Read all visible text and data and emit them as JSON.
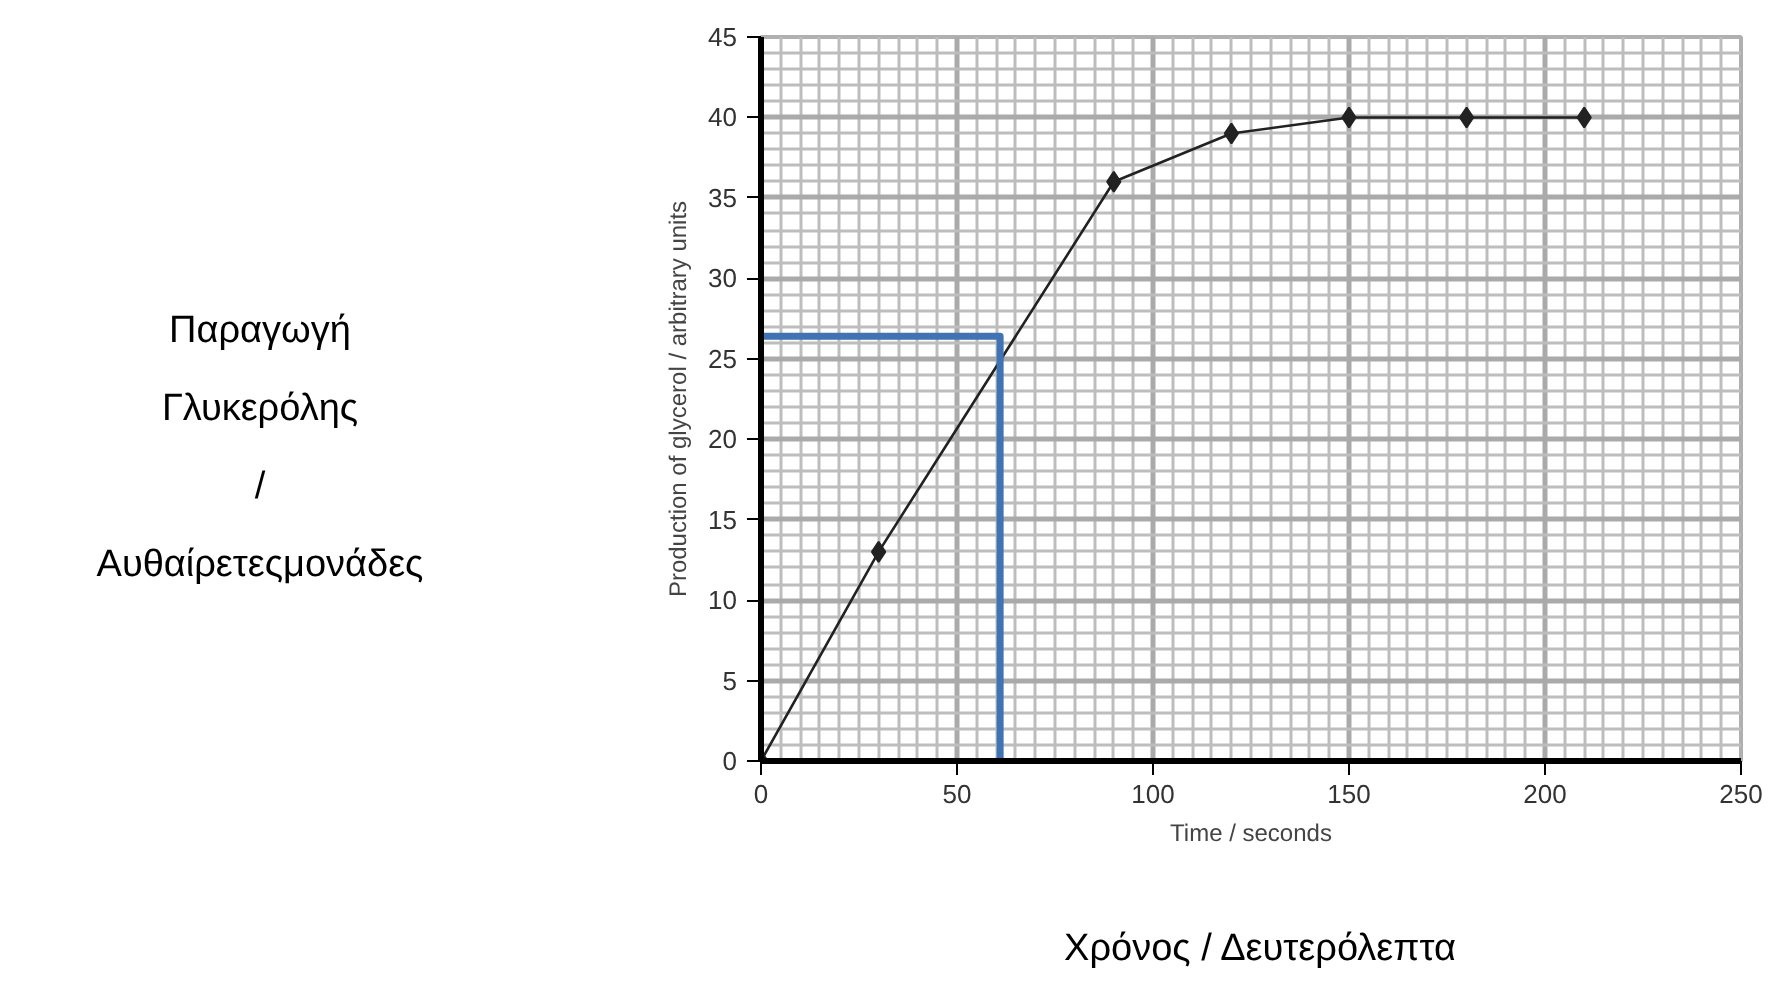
{
  "chart_data": {
    "type": "line",
    "xlabel": "Time / seconds",
    "ylabel": "Production of glycerol / arbitrary units",
    "annotations": [
      "Παραγωγή\nΓλυκερόλης\n/\nΑυθαίρετεςμονάδες",
      "Χρόνος / Δευτερόλεπτα"
    ],
    "xlim": [
      0,
      250
    ],
    "ylim": [
      0,
      45
    ],
    "xticks": [
      0,
      50,
      100,
      150,
      200,
      250
    ],
    "yticks": [
      0,
      5,
      10,
      15,
      20,
      25,
      30,
      35,
      40,
      45
    ],
    "grid": true,
    "marker": "diamond",
    "line_style": "solid",
    "series": [
      {
        "color": "#222222",
        "x": [
          0,
          30,
          90,
          120,
          150,
          180,
          210
        ],
        "values": [
          0,
          13,
          36,
          39,
          40,
          40,
          40
        ]
      },
      {
        "color": "#3f73b3",
        "marker": "none",
        "x": [
          0,
          61,
          61
        ],
        "values": [
          26.4,
          26.4,
          0
        ]
      }
    ]
  }
}
